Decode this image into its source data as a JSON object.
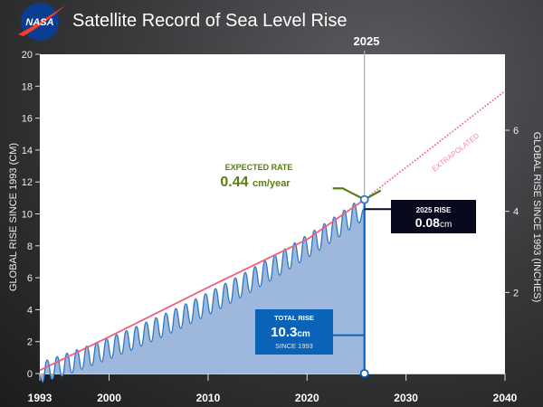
{
  "header": {
    "title": "Satellite Record of Sea Level Rise",
    "logo_text": "NASA"
  },
  "chart_data": {
    "type": "area",
    "title": "Satellite Record of Sea Level Rise",
    "ylabel": "GLOBAL RISE SINCE 1993 (CM)",
    "ylabel_right": "GLOBAL RISE SINCE 1993 (INCHES)",
    "xlim": [
      1993,
      2040
    ],
    "ylim": [
      0,
      20
    ],
    "x_ticks": [
      "1993",
      "2000",
      "2010",
      "2020",
      "2030",
      "2040"
    ],
    "x_tick_values": [
      1993,
      2000,
      2010,
      2020,
      2030,
      2040
    ],
    "y_ticks": [
      "0",
      "2",
      "4",
      "6",
      "8",
      "10",
      "12",
      "14",
      "16",
      "18",
      "20"
    ],
    "y_tick_values": [
      0,
      2,
      4,
      6,
      8,
      10,
      12,
      14,
      16,
      18,
      20
    ],
    "y_right_ticks": [
      "2",
      "4",
      "6"
    ],
    "y_right_tick_values_in": [
      2,
      4,
      6
    ],
    "series_start_year": 1993,
    "series_end_year": 2025.8,
    "annual_troughs": [
      -0.55,
      -0.36,
      -0.16,
      0.05,
      0.27,
      0.5,
      0.73,
      0.96,
      1.21,
      1.46,
      1.72,
      1.99,
      2.26,
      2.54,
      2.83,
      3.13,
      3.44,
      3.75,
      4.07,
      4.4,
      4.74,
      5.08,
      5.44,
      5.79,
      6.17,
      6.55,
      6.94,
      7.33,
      7.73,
      8.15,
      8.57,
      9.0,
      9.44
    ],
    "annual_peaks": [
      0.85,
      1.06,
      1.27,
      1.49,
      1.72,
      1.95,
      2.19,
      2.44,
      2.69,
      2.95,
      3.22,
      3.5,
      3.78,
      4.07,
      4.37,
      4.68,
      5.0,
      5.32,
      5.65,
      5.99,
      6.33,
      6.69,
      7.05,
      7.42,
      7.8,
      8.19,
      8.58,
      8.98,
      9.39,
      9.81,
      10.24,
      10.67,
      10.3
    ],
    "trend": [
      [
        1993,
        0.2
      ],
      [
        2000,
        2.3
      ],
      [
        2010,
        5.4
      ],
      [
        2020,
        8.4
      ],
      [
        2025.8,
        10.9
      ]
    ],
    "extrapolated": [
      [
        2025.8,
        10.9
      ],
      [
        2040,
        17.7
      ]
    ],
    "extrapolated_label": "EXTRAPOLATED",
    "marker": {
      "label": "2025",
      "x": 2025.8,
      "y": 10.9
    },
    "rate_callout": {
      "title": "EXPECTED RATE",
      "value": "0.44",
      "unit": "cm/year"
    },
    "rise_2025": {
      "title": "2025 RISE",
      "value": "0.08",
      "unit": "cm"
    },
    "total_rise": {
      "title": "TOTAL RISE",
      "value": "10.3",
      "unit": "cm",
      "subtitle": "SINCE 1993"
    },
    "colors": {
      "fill": "#9db8dc",
      "line": "#2a78c6",
      "trend": "#f0607a",
      "rate": "#5a7d12",
      "total_box": "#0b63b8",
      "rise_box": "#06091c"
    }
  }
}
